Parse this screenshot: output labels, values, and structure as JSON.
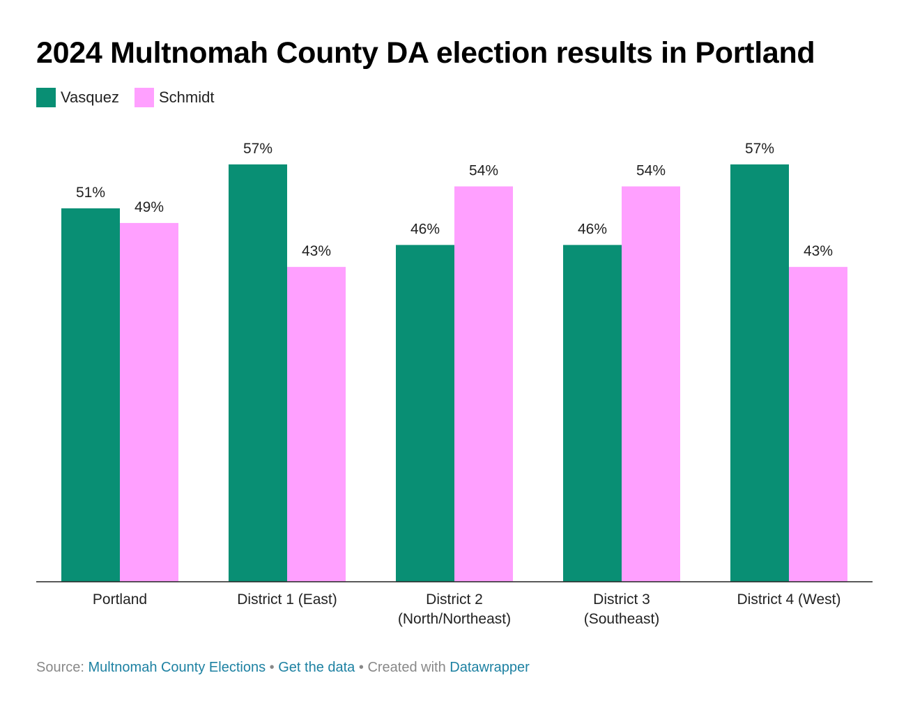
{
  "title": "2024 Multnomah County DA election results in Portland",
  "legend": [
    {
      "name": "Vasquez",
      "color": "#098f74"
    },
    {
      "name": "Schmidt",
      "color": "#ffa0ff"
    }
  ],
  "chart_data": {
    "type": "bar",
    "categories": [
      [
        "Portland"
      ],
      [
        "District 1 (East)"
      ],
      [
        "District 2",
        "(North/Northeast)"
      ],
      [
        "District 3",
        "(Southeast)"
      ],
      [
        "District 4 (West)"
      ]
    ],
    "series": [
      {
        "name": "Vasquez",
        "color": "#098f74",
        "values": [
          51,
          57,
          46,
          46,
          57
        ],
        "labels": [
          "51%",
          "57%",
          "46%",
          "46%",
          "57%"
        ]
      },
      {
        "name": "Schmidt",
        "color": "#ffa0ff",
        "values": [
          49,
          43,
          54,
          54,
          43
        ],
        "labels": [
          "49%",
          "43%",
          "54%",
          "54%",
          "43%"
        ]
      }
    ],
    "ylim": [
      0,
      57
    ],
    "grid": false,
    "legend_position": "top-left"
  },
  "footer": {
    "source_label": "Source:",
    "source_link": "Multnomah County Elections",
    "separator": "•",
    "data_link": "Get the data",
    "created_label": "Created with",
    "created_link": "Datawrapper"
  }
}
